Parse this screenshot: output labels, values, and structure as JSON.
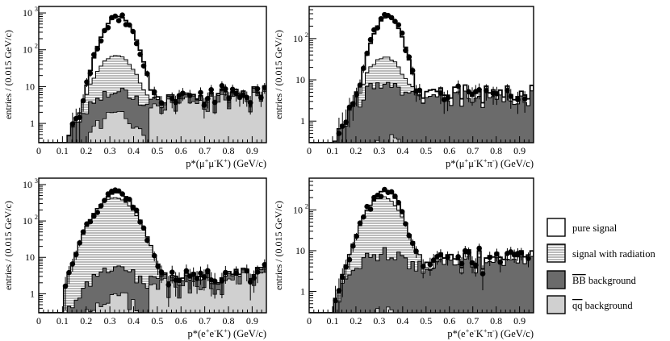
{
  "colors": {
    "pure_signal": "#ffffff",
    "signal_with_radiation": "#e2e2e2",
    "bb_background": "#6b6b6b",
    "qq_background": "#d0d0d0",
    "data_points": "#000000"
  },
  "legend": {
    "placement": "right",
    "entries": [
      {
        "label": "pure signal",
        "key": "pure",
        "icon": "empty-box-icon"
      },
      {
        "label": "signal with radiation",
        "key": "rad",
        "icon": "hatched-box-icon"
      },
      {
        "label": "BB background",
        "overline": "BB",
        "suffix": " background",
        "key": "bb",
        "icon": "dark-box-icon"
      },
      {
        "label": "qq background",
        "overline": "qq",
        "suffix": " background",
        "key": "qq",
        "icon": "light-box-icon"
      }
    ]
  },
  "chart_data": [
    {
      "type": "histogram",
      "panel": "top-left",
      "xlabel": "p*(μ+μ-K+) (GeV/c)",
      "xlabel_parts": [
        [
          "p*(μ",
          ""
        ],
        [
          "+",
          "sup"
        ],
        [
          "μ",
          ""
        ],
        [
          "-",
          "sup"
        ],
        [
          "K",
          ""
        ],
        [
          "+",
          "sup"
        ],
        [
          ")  (GeV/c)",
          ""
        ]
      ],
      "ylabel": "entries / (0.015 GeV/c)",
      "xlim": [
        0,
        0.96
      ],
      "ylim": [
        0.3,
        1500
      ],
      "log_y": true,
      "x_ticks": [
        "0",
        "0.1",
        "0.2",
        "0.3",
        "0.4",
        "0.5",
        "0.6",
        "0.7",
        "0.8",
        "0.9"
      ],
      "y_ticks": [
        {
          "value": 1,
          "label": "1"
        },
        {
          "value": 10,
          "label": "10"
        },
        {
          "value": 100,
          "label": "10",
          "exp": "2"
        },
        {
          "value": 1000,
          "label": "10",
          "exp": "3"
        }
      ],
      "bin_width": 0.015,
      "peak": {
        "mean": 0.335,
        "sigma": 0.045,
        "total": 800,
        "rad": 65,
        "bb": 6,
        "qq": 1.8
      },
      "tail": {
        "from": 0.47,
        "total": 3.5,
        "qq": 2.5,
        "bb": 1.4,
        "rise": 2.0
      }
    },
    {
      "type": "histogram",
      "panel": "top-right",
      "xlabel": "p*(μ+μ-K+π-) (GeV/c)",
      "xlabel_parts": [
        [
          "p*(μ",
          ""
        ],
        [
          "+",
          "sup"
        ],
        [
          "μ",
          ""
        ],
        [
          "-",
          "sup"
        ],
        [
          "K",
          ""
        ],
        [
          "+",
          "sup"
        ],
        [
          "π",
          ""
        ],
        [
          "-",
          "sup"
        ],
        [
          ")  (GeV/c)",
          ""
        ]
      ],
      "ylabel": "entries / (0.015 GeV/c)",
      "xlim": [
        0,
        0.96
      ],
      "ylim": [
        0.3,
        600
      ],
      "log_y": true,
      "x_ticks": [
        "0",
        "0.1",
        "0.2",
        "0.3",
        "0.4",
        "0.5",
        "0.6",
        "0.7",
        "0.8",
        "0.9"
      ],
      "y_ticks": [
        {
          "value": 1,
          "label": "1"
        },
        {
          "value": 10,
          "label": "10"
        },
        {
          "value": 100,
          "label": "10",
          "exp": "2"
        }
      ],
      "bin_width": 0.015,
      "peak": {
        "mean": 0.335,
        "sigma": 0.042,
        "total": 330,
        "rad": 28,
        "bb": 8,
        "qq": 0.4
      },
      "tail": {
        "from": 0.45,
        "total": 4.0,
        "qq": 0.0,
        "bb": 3.8,
        "rise": 1.0
      }
    },
    {
      "type": "histogram",
      "panel": "bottom-left",
      "xlabel": "p*(e+e-K+) (GeV/c)",
      "xlabel_parts": [
        [
          "p*(e",
          ""
        ],
        [
          "+",
          "sup"
        ],
        [
          "e",
          ""
        ],
        [
          "-",
          "sup"
        ],
        [
          "K",
          ""
        ],
        [
          "+",
          "sup"
        ],
        [
          ")  (GeV/c)",
          ""
        ]
      ],
      "ylabel": "entries / (0.015 GeV/c)",
      "xlim": [
        0,
        0.96
      ],
      "ylim": [
        0.3,
        1500
      ],
      "log_y": true,
      "x_ticks": [
        "0",
        "0.1",
        "0.2",
        "0.3",
        "0.4",
        "0.5",
        "0.6",
        "0.7",
        "0.8",
        "0.9"
      ],
      "y_ticks": [
        {
          "value": 1,
          "label": "1"
        },
        {
          "value": 10,
          "label": "10"
        },
        {
          "value": 100,
          "label": "10",
          "exp": "2"
        },
        {
          "value": 1000,
          "label": "10",
          "exp": "3"
        }
      ],
      "bin_width": 0.015,
      "peak": {
        "mean": 0.33,
        "sigma": 0.052,
        "total": 600,
        "rad": 430,
        "bb": 4,
        "qq": 0.9
      },
      "tail": {
        "from": 0.47,
        "total": 2.2,
        "qq": 1.6,
        "bb": 0.9,
        "rise": 1.6
      }
    },
    {
      "type": "histogram",
      "panel": "bottom-right",
      "xlabel": "p*(e+e-K+π-) (GeV/c)",
      "xlabel_parts": [
        [
          "p*(e",
          ""
        ],
        [
          "+",
          "sup"
        ],
        [
          "e",
          ""
        ],
        [
          "-",
          "sup"
        ],
        [
          "K",
          ""
        ],
        [
          "+",
          "sup"
        ],
        [
          "π",
          ""
        ],
        [
          "-",
          "sup"
        ],
        [
          ")  (GeV/c)",
          ""
        ]
      ],
      "ylabel": "entries / (0.015 GeV/c)",
      "xlim": [
        0,
        0.96
      ],
      "ylim": [
        0.3,
        600
      ],
      "log_y": true,
      "x_ticks": [
        "0",
        "0.1",
        "0.2",
        "0.3",
        "0.4",
        "0.5",
        "0.6",
        "0.7",
        "0.8",
        "0.9"
      ],
      "y_ticks": [
        {
          "value": 1,
          "label": "1"
        },
        {
          "value": 10,
          "label": "10"
        },
        {
          "value": 100,
          "label": "10",
          "exp": "2"
        }
      ],
      "bin_width": 0.015,
      "peak": {
        "mean": 0.325,
        "sigma": 0.045,
        "total": 300,
        "rad": 200,
        "bb": 9,
        "qq": 0.3
      },
      "tail": {
        "from": 0.45,
        "total": 6.0,
        "qq": 0.0,
        "bb": 5.0,
        "rise": 0.7
      }
    }
  ]
}
